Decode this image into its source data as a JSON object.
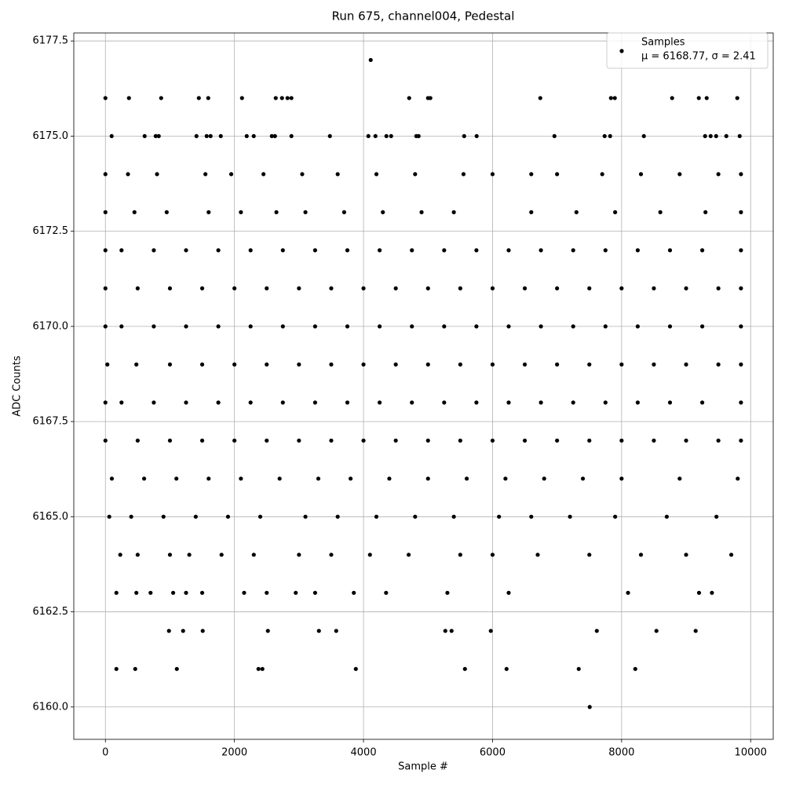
{
  "chart_data": {
    "type": "scatter",
    "title": "Run 675, channel004, Pedestal",
    "x_label": "Sample #",
    "y_label": "ADC Counts",
    "xlim": [
      -490,
      10350
    ],
    "ylim": [
      6159.15,
      6177.71
    ],
    "xticks": [
      0,
      2000,
      4000,
      6000,
      8000,
      10000
    ],
    "yticks": [
      {
        "value": 6160,
        "label": "6160.0"
      },
      6162.5,
      {
        "value": 6165,
        "label": "6165.0"
      },
      6167.5,
      {
        "value": 6170,
        "label": "6170.0"
      },
      6172.5,
      {
        "value": 6175,
        "label": "6175.0"
      },
      6177.5
    ],
    "grid": true,
    "legend_position": "upper right",
    "x": [
      7506,
      170,
      462,
      1107,
      2372,
      2433,
      3881,
      5572,
      6217,
      7336,
      8212,
      985,
      1204,
      1508,
      2518,
      3309,
      3577,
      5268,
      5365,
      5973,
      7616,
      8540,
      9148,
      170,
      480,
      700,
      1050,
      1250,
      1500,
      2150,
      2500,
      2950,
      3250,
      3850,
      4350,
      5300,
      6250,
      8100,
      9200,
      9400,
      230,
      500,
      1000,
      1300,
      1800,
      2300,
      3000,
      3500,
      4100,
      4700,
      5500,
      6000,
      6700,
      7500,
      8300,
      9000,
      9700,
      60,
      400,
      900,
      1400,
      1900,
      2400,
      3100,
      3600,
      4200,
      4800,
      5400,
      6100,
      6600,
      7200,
      7900,
      8700,
      9470,
      100,
      600,
      1100,
      1600,
      2100,
      2700,
      3300,
      3800,
      4400,
      5000,
      5600,
      6200,
      6800,
      7400,
      8000,
      8900,
      9800,
      0,
      500,
      1000,
      1500,
      2000,
      2500,
      3000,
      3500,
      4000,
      4500,
      5000,
      5500,
      6000,
      6500,
      7000,
      7500,
      8000,
      8500,
      9000,
      9500,
      9850,
      0,
      250,
      750,
      1250,
      1750,
      2250,
      2750,
      3250,
      3750,
      4250,
      4750,
      5250,
      5750,
      6250,
      6750,
      7250,
      7750,
      8250,
      8750,
      9250,
      9850,
      30,
      480,
      1000,
      1500,
      2000,
      2500,
      3000,
      3500,
      4000,
      4500,
      5000,
      5500,
      6000,
      6500,
      7000,
      7500,
      8000,
      8500,
      9000,
      9500,
      9850,
      0,
      250,
      750,
      1250,
      1750,
      2250,
      2750,
      3250,
      3750,
      4250,
      4750,
      5250,
      5750,
      6250,
      6750,
      7250,
      7750,
      8250,
      8750,
      9250,
      9850,
      0,
      500,
      1000,
      1500,
      2000,
      2500,
      3000,
      3500,
      4000,
      4500,
      5000,
      5500,
      6000,
      6500,
      7000,
      7500,
      8000,
      8500,
      9000,
      9500,
      9850,
      0,
      250,
      750,
      1250,
      1750,
      2250,
      2750,
      3250,
      3750,
      4250,
      4750,
      5250,
      5750,
      6250,
      6750,
      7250,
      7750,
      8250,
      8750,
      9250,
      9850,
      0,
      450,
      950,
      1600,
      2100,
      2650,
      3100,
      3700,
      4300,
      4900,
      5400,
      6600,
      7300,
      7900,
      8600,
      9300,
      9850,
      0,
      350,
      800,
      1550,
      1950,
      2450,
      3050,
      3600,
      4200,
      4800,
      5550,
      6000,
      6600,
      7000,
      7700,
      8300,
      8900,
      9500,
      9850,
      97,
      608,
      779,
      827,
      1411,
      1569,
      1630,
      1788,
      2190,
      2299,
      2579,
      2628,
      2883,
      3479,
      4075,
      4185,
      4355,
      4428,
      4818,
      4854,
      5560,
      5754,
      6959,
      7737,
      7822,
      8345,
      9294,
      9380,
      9465,
      9623,
      9830,
      0,
      365,
      864,
      1448,
      1594,
      2117,
      2640,
      2737,
      2822,
      2883,
      4708,
      5000,
      5036,
      6740,
      7835,
      7895,
      8783,
      9197,
      9319,
      9793,
      4112
    ],
    "series": [
      {
        "name": "Samples",
        "color": "#000000",
        "values": [
          6160,
          6161,
          6161,
          6161,
          6161,
          6161,
          6161,
          6161,
          6161,
          6161,
          6161,
          6162,
          6162,
          6162,
          6162,
          6162,
          6162,
          6162,
          6162,
          6162,
          6162,
          6162,
          6162,
          6163,
          6163,
          6163,
          6163,
          6163,
          6163,
          6163,
          6163,
          6163,
          6163,
          6163,
          6163,
          6163,
          6163,
          6163,
          6163,
          6163,
          6164,
          6164,
          6164,
          6164,
          6164,
          6164,
          6164,
          6164,
          6164,
          6164,
          6164,
          6164,
          6164,
          6164,
          6164,
          6164,
          6164,
          6165,
          6165,
          6165,
          6165,
          6165,
          6165,
          6165,
          6165,
          6165,
          6165,
          6165,
          6165,
          6165,
          6165,
          6165,
          6165,
          6165,
          6166,
          6166,
          6166,
          6166,
          6166,
          6166,
          6166,
          6166,
          6166,
          6166,
          6166,
          6166,
          6166,
          6166,
          6166,
          6166,
          6166,
          6167,
          6167,
          6167,
          6167,
          6167,
          6167,
          6167,
          6167,
          6167,
          6167,
          6167,
          6167,
          6167,
          6167,
          6167,
          6167,
          6167,
          6167,
          6167,
          6167,
          6167,
          6168,
          6168,
          6168,
          6168,
          6168,
          6168,
          6168,
          6168,
          6168,
          6168,
          6168,
          6168,
          6168,
          6168,
          6168,
          6168,
          6168,
          6168,
          6168,
          6168,
          6168,
          6169,
          6169,
          6169,
          6169,
          6169,
          6169,
          6169,
          6169,
          6169,
          6169,
          6169,
          6169,
          6169,
          6169,
          6169,
          6169,
          6169,
          6169,
          6169,
          6169,
          6169,
          6170,
          6170,
          6170,
          6170,
          6170,
          6170,
          6170,
          6170,
          6170,
          6170,
          6170,
          6170,
          6170,
          6170,
          6170,
          6170,
          6170,
          6170,
          6170,
          6170,
          6170,
          6171,
          6171,
          6171,
          6171,
          6171,
          6171,
          6171,
          6171,
          6171,
          6171,
          6171,
          6171,
          6171,
          6171,
          6171,
          6171,
          6171,
          6171,
          6171,
          6171,
          6171,
          6172,
          6172,
          6172,
          6172,
          6172,
          6172,
          6172,
          6172,
          6172,
          6172,
          6172,
          6172,
          6172,
          6172,
          6172,
          6172,
          6172,
          6172,
          6172,
          6172,
          6172,
          6173,
          6173,
          6173,
          6173,
          6173,
          6173,
          6173,
          6173,
          6173,
          6173,
          6173,
          6173,
          6173,
          6173,
          6173,
          6173,
          6173,
          6174,
          6174,
          6174,
          6174,
          6174,
          6174,
          6174,
          6174,
          6174,
          6174,
          6174,
          6174,
          6174,
          6174,
          6174,
          6174,
          6174,
          6174,
          6174,
          6175,
          6175,
          6175,
          6175,
          6175,
          6175,
          6175,
          6175,
          6175,
          6175,
          6175,
          6175,
          6175,
          6175,
          6175,
          6175,
          6175,
          6175,
          6175,
          6175,
          6175,
          6175,
          6175,
          6175,
          6175,
          6175,
          6175,
          6175,
          6175,
          6175,
          6175,
          6176,
          6176,
          6176,
          6176,
          6176,
          6176,
          6176,
          6176,
          6176,
          6176,
          6176,
          6176,
          6176,
          6176,
          6176,
          6176,
          6176,
          6176,
          6176,
          6176,
          6177
        ]
      }
    ],
    "legend_note": "μ = 6168.77, σ = 2.41"
  }
}
